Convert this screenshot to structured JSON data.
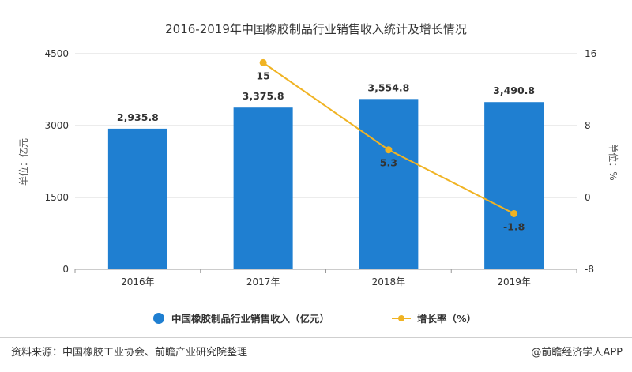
{
  "chart_data": {
    "type": "bar",
    "title": "2016-2019年中国橡胶制品行业销售收入统计及增长情况",
    "categories": [
      "2016年",
      "2017年",
      "2018年",
      "2019年"
    ],
    "series": [
      {
        "name": "中国橡胶制品行业销售收入（亿元）",
        "type": "bar",
        "axis": "left",
        "color": "#1f7fd1",
        "values": [
          2935.8,
          3375.8,
          3554.8,
          3490.8
        ],
        "labels": [
          "2,935.8",
          "3,375.8",
          "3,554.8",
          "3,490.8"
        ]
      },
      {
        "name": "增长率（%）",
        "type": "line",
        "axis": "right",
        "color": "#f0b323",
        "values": [
          null,
          15,
          5.3,
          -1.8
        ],
        "labels": [
          "",
          "15",
          "5.3",
          "-1.8"
        ]
      }
    ],
    "y_left": {
      "label": "单位：亿元",
      "ylim": [
        0,
        4500
      ],
      "ticks": [
        "0",
        "1500",
        "3000",
        "4500"
      ]
    },
    "y_right": {
      "label": "单位：%",
      "ylim": [
        -8,
        16
      ],
      "ticks": [
        "-8",
        "0",
        "8",
        "16"
      ]
    },
    "grid": true,
    "legend": "bottom"
  },
  "footer": {
    "source": "资料来源：中国橡胶工业协会、前瞻产业研究院整理",
    "credit": "@前瞻经济学人APP"
  }
}
